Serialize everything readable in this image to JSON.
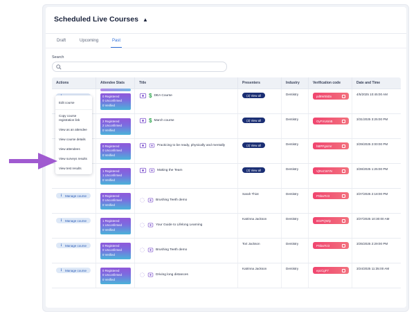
{
  "page": {
    "title": "Scheduled Live Courses",
    "tabs": [
      {
        "label": "Draft",
        "active": false
      },
      {
        "label": "Upcoming",
        "active": false
      },
      {
        "label": "Past",
        "active": true
      }
    ],
    "search": {
      "label": "Search",
      "value": "",
      "placeholder": ""
    }
  },
  "table": {
    "headers": [
      "Actions",
      "Attendee Stats",
      "Title",
      "Presenters",
      "Industry",
      "Verification code",
      "Date and Time"
    ],
    "rows": [
      {
        "title": "DEA Course",
        "icons": [
          "course-icon",
          "dollar-icon"
        ],
        "presenter": "",
        "view_all": "(2) View all",
        "industry": "Dentistry",
        "code": "pd8WS5Dx",
        "datetime": "4/5/2025 10:45:00 AM",
        "registered": "0 Registered",
        "unconfirmed": "0 Unconfirmed",
        "verified": "0 Verified"
      },
      {
        "title": "March course",
        "icons": [
          "course-icon",
          "dollar-icon"
        ],
        "presenter": "",
        "view_all": "(2) View all",
        "industry": "Dentistry",
        "code": "OyFVU6mB",
        "datetime": "3/31/2025 3:25:00 PM",
        "registered": "2 Registered",
        "unconfirmed": "2 Unconfirmed",
        "verified": "0 Verified"
      },
      {
        "title": "Practicing to be ready, physically and mentally",
        "icons": [
          "course-icon",
          "course-icon"
        ],
        "presenter": "",
        "view_all": "(2) View all",
        "industry": "Dentistry",
        "code": "hBPPgsrmr",
        "datetime": "3/29/2025 2:00:00 PM",
        "registered": "0 Registered",
        "unconfirmed": "0 Unconfirmed",
        "verified": "0 Verified"
      },
      {
        "title": "Making the Team",
        "icons": [
          "course-icon",
          "course-icon"
        ],
        "presenter": "",
        "view_all": "(2) View all",
        "industry": "Dentistry",
        "code": "VjRoCWYN",
        "datetime": "3/28/2025 1:25:00 PM",
        "registered": "1 Registered",
        "unconfirmed": "1 Unconfirmed",
        "verified": "0 Verified"
      },
      {
        "title": "Brushing Teeth demo",
        "icons": [
          "loading-icon",
          "course-icon"
        ],
        "presenter": "Sarah Thiot",
        "view_all": "",
        "industry": "Dentistry",
        "code": "PSba7Iz3",
        "datetime": "3/27/2025 2:18:00 PM",
        "registered": "0 Registered",
        "unconfirmed": "0 Unconfirmed",
        "verified": "0 Verified"
      },
      {
        "title": "Your Guide to Lifelong Learning",
        "icons": [
          "loading-icon",
          "course-icon"
        ],
        "presenter": "Katrinna Jackson",
        "view_all": "",
        "industry": "Dentistry",
        "code": "8GrPQWiy",
        "datetime": "3/27/2025 10:30:00 AM",
        "registered": "1 Registered",
        "unconfirmed": "1 Unconfirmed",
        "verified": "0 Verified"
      },
      {
        "title": "Brushing Teeth demo",
        "icons": [
          "loading-icon",
          "course-icon"
        ],
        "presenter": "Tori Jackson",
        "view_all": "",
        "industry": "Dentistry",
        "code": "PSba7Iz3",
        "datetime": "3/25/2025 2:29:00 PM",
        "registered": "0 Registered",
        "unconfirmed": "0 Unconfirmed",
        "verified": "0 Verified"
      },
      {
        "title": "Driving long distances",
        "icons": [
          "loading-icon",
          "course-icon"
        ],
        "presenter": "Katrinna Jackson",
        "view_all": "",
        "industry": "Dentistry",
        "code": "epcCgF7",
        "datetime": "3/24/2025 11:35:00 AM",
        "registered": "0 Registered",
        "unconfirmed": "0 Unconfirmed",
        "verified": "0 Verified"
      }
    ],
    "manage_label": "Manage course"
  },
  "menu": {
    "items": [
      "Edit course",
      "Copy course registration link",
      "View as an attendee",
      "View course details",
      "View attendees",
      "View surveys results",
      "View test results"
    ]
  },
  "colors": {
    "accent": "#2f6fd8",
    "view_all_bg": "#1b2f74",
    "code_bg": "#f0456f",
    "arrow": "#a05ad0"
  }
}
